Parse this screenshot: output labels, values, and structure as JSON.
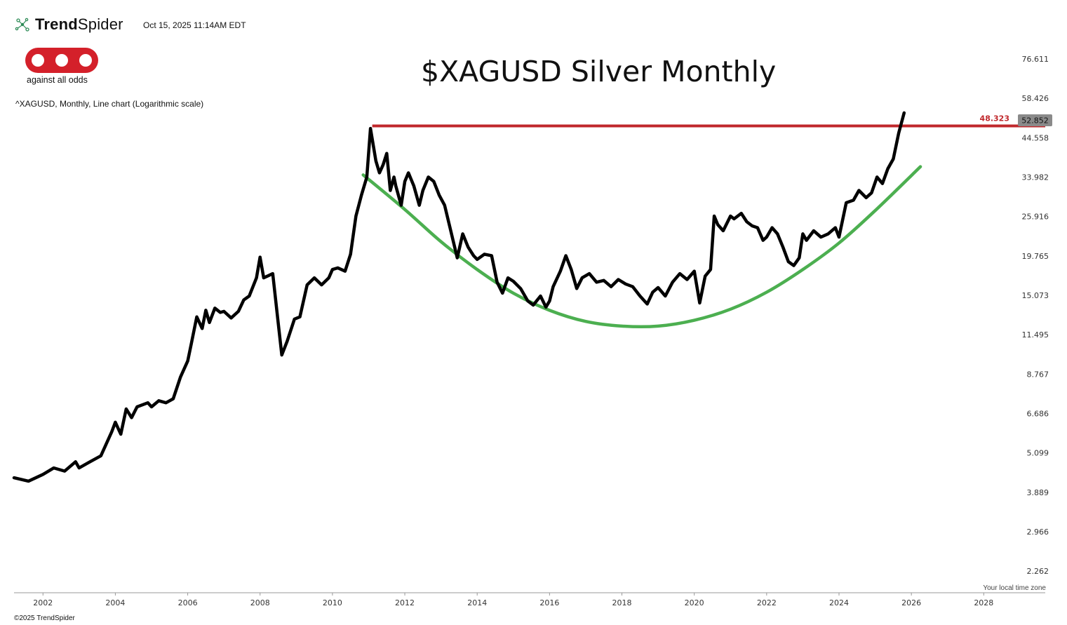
{
  "header": {
    "brand_bold": "Trend",
    "brand_light": "Spider",
    "timestamp": "Oct 15, 2025 11:14AM EDT",
    "logo_tagline": "against all odds",
    "subtitle": "^XAGUSD, Monthly, Line chart (Logarithmic scale)"
  },
  "footer": {
    "copyright": "©2025 TrendSpider",
    "timezone_note": "Your local time zone"
  },
  "colors": {
    "price_line": "#000000",
    "resistance": "#c0282c",
    "cup_curve": "#4caf50",
    "last_price_badge": "#8a8a8a"
  },
  "chart_data": {
    "type": "line",
    "title": "$XAGUSD Silver Monthly",
    "y_scale": "log",
    "ylim": [
      1.95,
      86
    ],
    "xlim": [
      2001.2,
      2029.7
    ],
    "y_ticks": [
      "76.611",
      "58.426",
      "44.558",
      "33.982",
      "25.916",
      "19.765",
      "15.073",
      "11.495",
      "8.767",
      "6.686",
      "5.099",
      "3.889",
      "2.966",
      "2.262"
    ],
    "x_ticks": [
      "2002",
      "2004",
      "2006",
      "2008",
      "2010",
      "2012",
      "2014",
      "2016",
      "2018",
      "2020",
      "2022",
      "2024",
      "2026",
      "2028"
    ],
    "last_price": "52.852",
    "resistance": {
      "value": 48.323,
      "label": "48.323",
      "x_start": 2011.1,
      "x_end": 2029.7
    },
    "cup_curve": {
      "x": [
        2010.85,
        2012,
        2013,
        2014,
        2015,
        2016,
        2017,
        2018,
        2019,
        2020,
        2021,
        2022,
        2023,
        2024,
        2025,
        2026.25
      ],
      "y": [
        34.5,
        27.2,
        21.8,
        18.0,
        15.3,
        13.6,
        12.6,
        12.2,
        12.2,
        12.7,
        13.7,
        15.4,
        18.0,
        21.6,
        27.0,
        36.5
      ]
    },
    "series": [
      {
        "x": [
          2001.2,
          2001.6,
          2002.0,
          2002.3,
          2002.6,
          2002.9,
          2003.0,
          2003.3,
          2003.6,
          2003.9,
          2004.0,
          2004.15,
          2004.3,
          2004.45,
          2004.6,
          2004.9,
          2005.0,
          2005.2,
          2005.4,
          2005.6,
          2005.8,
          2006.0,
          2006.1,
          2006.25,
          2006.4,
          2006.5,
          2006.6,
          2006.75,
          2006.9,
          2007.0,
          2007.2,
          2007.4,
          2007.55,
          2007.7,
          2007.9,
          2008.0,
          2008.1,
          2008.2,
          2008.35,
          2008.5,
          2008.6,
          2008.75,
          2008.95,
          2009.1,
          2009.3,
          2009.5,
          2009.7,
          2009.9,
          2010.0,
          2010.15,
          2010.35,
          2010.5,
          2010.65,
          2010.8,
          2010.95,
          2011.05,
          2011.2,
          2011.3,
          2011.4,
          2011.5,
          2011.6,
          2011.7,
          2011.75,
          2011.9,
          2012.0,
          2012.1,
          2012.25,
          2012.4,
          2012.5,
          2012.65,
          2012.8,
          2012.95,
          2013.1,
          2013.25,
          2013.45,
          2013.6,
          2013.75,
          2013.9,
          2014.0,
          2014.2,
          2014.4,
          2014.55,
          2014.7,
          2014.85,
          2015.0,
          2015.2,
          2015.4,
          2015.55,
          2015.75,
          2015.9,
          2016.0,
          2016.1,
          2016.3,
          2016.45,
          2016.6,
          2016.75,
          2016.9,
          2017.1,
          2017.3,
          2017.5,
          2017.7,
          2017.9,
          2018.1,
          2018.3,
          2018.5,
          2018.7,
          2018.85,
          2019.0,
          2019.2,
          2019.4,
          2019.6,
          2019.8,
          2020.0,
          2020.15,
          2020.3,
          2020.45,
          2020.55,
          2020.65,
          2020.8,
          2021.0,
          2021.1,
          2021.3,
          2021.45,
          2021.6,
          2021.75,
          2021.9,
          2022.0,
          2022.15,
          2022.3,
          2022.45,
          2022.6,
          2022.75,
          2022.9,
          2023.0,
          2023.1,
          2023.3,
          2023.5,
          2023.7,
          2023.9,
          2024.0,
          2024.2,
          2024.4,
          2024.55,
          2024.75,
          2024.9,
          2025.05,
          2025.2,
          2025.35,
          2025.5,
          2025.65,
          2025.8
        ],
        "y": [
          4.3,
          4.2,
          4.4,
          4.6,
          4.5,
          4.8,
          4.6,
          4.8,
          5.0,
          5.9,
          6.3,
          5.8,
          6.9,
          6.5,
          7.0,
          7.2,
          7.0,
          7.3,
          7.2,
          7.4,
          8.6,
          9.6,
          10.8,
          13.0,
          12.0,
          13.6,
          12.5,
          13.8,
          13.4,
          13.5,
          12.9,
          13.5,
          14.6,
          15.0,
          17.0,
          19.6,
          17.0,
          17.2,
          17.5,
          12.5,
          10.0,
          11.0,
          12.8,
          13.0,
          16.2,
          17.0,
          16.2,
          17.0,
          18.0,
          18.2,
          17.8,
          20.0,
          26.0,
          30.0,
          34.0,
          47.5,
          38.0,
          35.0,
          37.0,
          40.0,
          31.0,
          34.0,
          32.0,
          28.0,
          33.0,
          35.0,
          32.0,
          28.0,
          31.0,
          34.0,
          33.0,
          30.0,
          28.0,
          24.0,
          19.5,
          23.0,
          21.0,
          19.8,
          19.3,
          20.0,
          19.8,
          16.5,
          15.3,
          17.0,
          16.6,
          15.8,
          14.5,
          14.1,
          15.0,
          13.9,
          14.5,
          16.0,
          17.8,
          19.8,
          18.0,
          15.8,
          17.0,
          17.5,
          16.5,
          16.7,
          16.0,
          16.8,
          16.3,
          16.0,
          15.0,
          14.2,
          15.4,
          15.9,
          15.0,
          16.5,
          17.5,
          16.8,
          17.8,
          14.3,
          17.2,
          18.0,
          26.0,
          24.5,
          23.5,
          26.0,
          25.5,
          26.5,
          25.0,
          24.3,
          24.0,
          22.0,
          22.5,
          24.0,
          23.0,
          21.0,
          19.0,
          18.5,
          19.5,
          23.0,
          22.0,
          23.5,
          22.5,
          23.0,
          24.0,
          22.5,
          28.5,
          29.0,
          31.0,
          29.5,
          30.5,
          34.0,
          32.5,
          36.0,
          38.5,
          46.0,
          52.852
        ]
      }
    ]
  }
}
